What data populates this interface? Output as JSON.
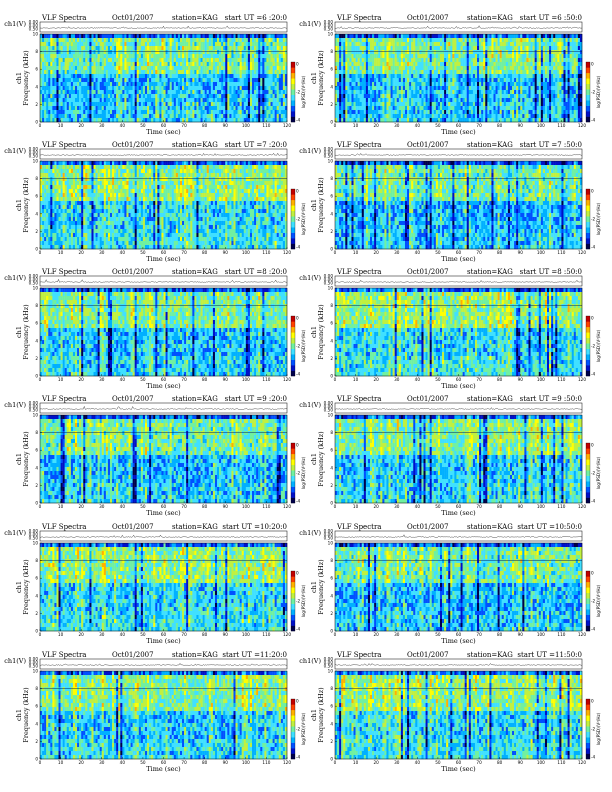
{
  "page_title": "VLF Spectra",
  "colors": {
    "cmap": [
      "#00004a",
      "#0010c8",
      "#0050ff",
      "#00b0ff",
      "#40e0ff",
      "#70f0a0",
      "#c0f040",
      "#ffff00",
      "#ffb000",
      "#ff4000",
      "#c00000"
    ],
    "background": "#ffffff",
    "ink": "#000000"
  },
  "chart_data": [
    {
      "type": "heatmap",
      "title": "VLF Spectra",
      "date": "Oct01/2007",
      "station": "station=KAG",
      "start_ut": "start  UT  =6 :20:0",
      "ch_label": "ch1(V)",
      "ch_ticks": [
        "0.00",
        "0.00",
        "0.50"
      ],
      "ylabel": "ch1\nFrequency  (kHz)",
      "ylabel_top": "ch1",
      "ylabel_main": "Frequency  (kHz)",
      "xlabel": "Time  (sec)",
      "xticks": [
        0,
        10,
        20,
        30,
        40,
        50,
        60,
        70,
        80,
        90,
        100,
        110,
        120
      ],
      "yticks": [
        0,
        2,
        4,
        6,
        8,
        10
      ],
      "xlim": [
        0,
        120
      ],
      "ylim": [
        0,
        10
      ],
      "colorbar_label": "log(PSD)(V²/Hz)",
      "colorbar_ticks": [
        "0",
        "-2",
        "-4"
      ]
    },
    {
      "type": "heatmap",
      "title": "VLF Spectra",
      "date": "Oct01/2007",
      "station": "station=KAG",
      "start_ut": "start  UT  =6 :50:0",
      "ch_label": "ch1(V)",
      "ch_ticks": [
        "0.00",
        "0.00",
        "0.50"
      ],
      "ylabel_top": "ch1",
      "ylabel_main": "Frequency  (kHz)",
      "xlabel": "Time  (sec)",
      "xticks": [
        0,
        10,
        20,
        30,
        40,
        50,
        60,
        70,
        80,
        90,
        100,
        110,
        120
      ],
      "yticks": [
        0,
        2,
        4,
        6,
        8,
        10
      ],
      "xlim": [
        0,
        120
      ],
      "ylim": [
        0,
        10
      ],
      "colorbar_label": "log(PSD)(V²/Hz)",
      "colorbar_ticks": [
        "0",
        "-2",
        "-4"
      ]
    },
    {
      "type": "heatmap",
      "title": "VLF Spectra",
      "date": "Oct01/2007",
      "station": "station=KAG",
      "start_ut": "start  UT  =7 :20:0",
      "ch_label": "ch1(V)",
      "ch_ticks": [
        "0.00",
        "0.00",
        "0.50"
      ],
      "ylabel_top": "ch1",
      "ylabel_main": "Frequency  (kHz)",
      "xlabel": "Time  (sec)",
      "xticks": [
        0,
        10,
        20,
        30,
        40,
        50,
        60,
        70,
        80,
        90,
        100,
        110,
        120
      ],
      "yticks": [
        0,
        2,
        4,
        6,
        8,
        10
      ],
      "xlim": [
        0,
        120
      ],
      "ylim": [
        0,
        10
      ],
      "colorbar_label": "log(PSD)(V²/Hz)",
      "colorbar_ticks": [
        "0",
        "-2",
        "-4"
      ]
    },
    {
      "type": "heatmap",
      "title": "VLF Spectra",
      "date": "Oct01/2007",
      "station": "station=KAG",
      "start_ut": "start  UT  =7 :50:0",
      "ch_label": "ch1(V)",
      "ch_ticks": [
        "0.00",
        "0.00",
        "0.50"
      ],
      "ylabel_top": "ch1",
      "ylabel_main": "Frequency  (kHz)",
      "xlabel": "Time  (sec)",
      "xticks": [
        0,
        10,
        20,
        30,
        40,
        50,
        60,
        70,
        80,
        90,
        100,
        110,
        120
      ],
      "yticks": [
        0,
        2,
        4,
        6,
        8,
        10
      ],
      "xlim": [
        0,
        120
      ],
      "ylim": [
        0,
        10
      ],
      "colorbar_label": "log(PSD)(V²/Hz)",
      "colorbar_ticks": [
        "0",
        "-2",
        "-4"
      ]
    },
    {
      "type": "heatmap",
      "title": "VLF Spectra",
      "date": "Oct01/2007",
      "station": "station=KAG",
      "start_ut": "start  UT  =8 :20:0",
      "ch_label": "ch1(V)",
      "ch_ticks": [
        "0.00",
        "0.00",
        "0.50"
      ],
      "ylabel_top": "ch1",
      "ylabel_main": "Frequency  (kHz)",
      "xlabel": "Time  (sec)",
      "xticks": [
        0,
        10,
        20,
        30,
        40,
        50,
        60,
        70,
        80,
        90,
        100,
        110,
        120
      ],
      "yticks": [
        0,
        2,
        4,
        6,
        8,
        10
      ],
      "xlim": [
        0,
        120
      ],
      "ylim": [
        0,
        10
      ],
      "colorbar_label": "log(PSD)(V²/Hz)",
      "colorbar_ticks": [
        "0",
        "-2",
        "-4"
      ]
    },
    {
      "type": "heatmap",
      "title": "VLF Spectra",
      "date": "Oct01/2007",
      "station": "station=KAG",
      "start_ut": "start  UT  =8 :50:0",
      "ch_label": "ch1(V)",
      "ch_ticks": [
        "0.00",
        "0.00",
        "0.50"
      ],
      "ylabel_top": "ch1",
      "ylabel_main": "Frequency  (kHz)",
      "xlabel": "Time  (sec)",
      "xticks": [
        0,
        10,
        20,
        30,
        40,
        50,
        60,
        70,
        80,
        90,
        100,
        110,
        120
      ],
      "yticks": [
        0,
        2,
        4,
        6,
        8,
        10
      ],
      "xlim": [
        0,
        120
      ],
      "ylim": [
        0,
        10
      ],
      "colorbar_label": "log(PSD)(V²/Hz)",
      "colorbar_ticks": [
        "0",
        "-2",
        "-4"
      ]
    },
    {
      "type": "heatmap",
      "title": "VLF Spectra",
      "date": "Oct01/2007",
      "station": "station=KAG",
      "start_ut": "start  UT  =9 :20:0",
      "ch_label": "ch1(V)",
      "ch_ticks": [
        "0.00",
        "0.00",
        "0.50"
      ],
      "ylabel_top": "ch1",
      "ylabel_main": "Frequency  (kHz)",
      "xlabel": "Time  (sec)",
      "xticks": [
        0,
        10,
        20,
        30,
        40,
        50,
        60,
        70,
        80,
        90,
        100,
        110,
        120
      ],
      "yticks": [
        0,
        2,
        4,
        6,
        8,
        10
      ],
      "xlim": [
        0,
        120
      ],
      "ylim": [
        0,
        10
      ],
      "colorbar_label": "log(PSD)(V²/Hz)",
      "colorbar_ticks": [
        "0",
        "-2",
        "-4"
      ]
    },
    {
      "type": "heatmap",
      "title": "VLF Spectra",
      "date": "Oct01/2007",
      "station": "station=KAG",
      "start_ut": "start  UT  =9 :50:0",
      "ch_label": "ch1(V)",
      "ch_ticks": [
        "0.00",
        "0.00",
        "0.50"
      ],
      "ylabel_top": "ch1",
      "ylabel_main": "Frequency  (kHz)",
      "xlabel": "Time  (sec)",
      "xticks": [
        0,
        10,
        20,
        30,
        40,
        50,
        60,
        70,
        80,
        90,
        100,
        110,
        120
      ],
      "yticks": [
        0,
        2,
        4,
        6,
        8,
        10
      ],
      "xlim": [
        0,
        120
      ],
      "ylim": [
        0,
        10
      ],
      "colorbar_label": "log(PSD)(V²/Hz)",
      "colorbar_ticks": [
        "0",
        "-2",
        "-4"
      ]
    },
    {
      "type": "heatmap",
      "title": "VLF Spectra",
      "date": "Oct01/2007",
      "station": "station=KAG",
      "start_ut": "start  UT  =10:20:0",
      "ch_label": "ch1(V)",
      "ch_ticks": [
        "0.00",
        "0.00",
        "0.50"
      ],
      "ylabel_top": "ch1",
      "ylabel_main": "Frequency  (kHz)",
      "xlabel": "Time  (sec)",
      "xticks": [
        0,
        10,
        20,
        30,
        40,
        50,
        60,
        70,
        80,
        90,
        100,
        110,
        120
      ],
      "yticks": [
        0,
        2,
        4,
        6,
        8,
        10
      ],
      "xlim": [
        0,
        120
      ],
      "ylim": [
        0,
        10
      ],
      "colorbar_label": "log(PSD)(V²/Hz)",
      "colorbar_ticks": [
        "0",
        "-2",
        "-4"
      ]
    },
    {
      "type": "heatmap",
      "title": "VLF Spectra",
      "date": "Oct01/2007",
      "station": "station=KAG",
      "start_ut": "start  UT  =10:50:0",
      "ch_label": "ch1(V)",
      "ch_ticks": [
        "0.00",
        "0.00",
        "0.50"
      ],
      "ylabel_top": "ch1",
      "ylabel_main": "Frequency  (kHz)",
      "xlabel": "Time  (sec)",
      "xticks": [
        0,
        10,
        20,
        30,
        40,
        50,
        60,
        70,
        80,
        90,
        100,
        110,
        120
      ],
      "yticks": [
        0,
        2,
        4,
        6,
        8,
        10
      ],
      "xlim": [
        0,
        120
      ],
      "ylim": [
        0,
        10
      ],
      "colorbar_label": "log(PSD)(V²/Hz)",
      "colorbar_ticks": [
        "0",
        "-2",
        "-4"
      ]
    },
    {
      "type": "heatmap",
      "title": "VLF Spectra",
      "date": "Oct01/2007",
      "station": "station=KAG",
      "start_ut": "start  UT  =11:20:0",
      "ch_label": "ch1(V)",
      "ch_ticks": [
        "0.00",
        "0.00",
        "0.50"
      ],
      "ylabel_top": "ch1",
      "ylabel_main": "Frequency  (kHz)",
      "xlabel": "Time  (sec)",
      "xticks": [
        0,
        10,
        20,
        30,
        40,
        50,
        60,
        70,
        80,
        90,
        100,
        110,
        120
      ],
      "yticks": [
        0,
        2,
        4,
        6,
        8,
        10
      ],
      "xlim": [
        0,
        120
      ],
      "ylim": [
        0,
        10
      ],
      "colorbar_label": "log(PSD)(V²/Hz)",
      "colorbar_ticks": [
        "0",
        "-2",
        "-4"
      ]
    },
    {
      "type": "heatmap",
      "title": "VLF Spectra",
      "date": "Oct01/2007",
      "station": "station=KAG",
      "start_ut": "start  UT  =11:50:0",
      "ch_label": "ch1(V)",
      "ch_ticks": [
        "0.00",
        "0.00",
        "0.50"
      ],
      "ylabel_top": "ch1",
      "ylabel_main": "Frequency  (kHz)",
      "xlabel": "Time  (sec)",
      "xticks": [
        0,
        10,
        20,
        30,
        40,
        50,
        60,
        70,
        80,
        90,
        100,
        110,
        120
      ],
      "yticks": [
        0,
        2,
        4,
        6,
        8,
        10
      ],
      "xlim": [
        0,
        120
      ],
      "ylim": [
        0,
        10
      ],
      "colorbar_label": "log(PSD)(V²/Hz)",
      "colorbar_ticks": [
        "0",
        "-2",
        "-4"
      ]
    }
  ]
}
